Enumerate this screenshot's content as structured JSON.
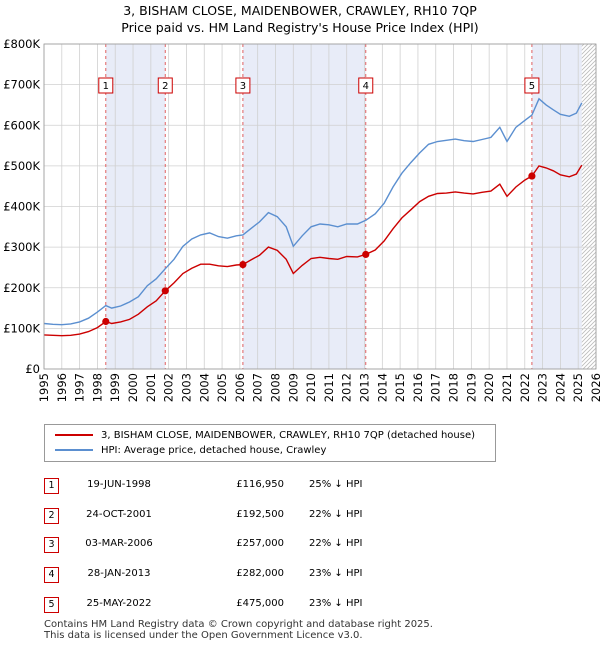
{
  "title_line1": "3, BISHAM CLOSE, MAIDENBOWER, CRAWLEY, RH10 7QP",
  "title_line2": "Price paid vs. HM Land Registry's House Price Index (HPI)",
  "chart_data": {
    "type": "line",
    "title": "3, BISHAM CLOSE, MAIDENBOWER, CRAWLEY, RH10 7QP",
    "subtitle": "Price paid vs. HM Land Registry's House Price Index (HPI)",
    "xlabel": "",
    "ylabel": "",
    "xlim": [
      1995,
      2026
    ],
    "ylim": [
      0,
      800000
    ],
    "x_ticks": [
      "1995",
      "1996",
      "1997",
      "1998",
      "1999",
      "2000",
      "2001",
      "2002",
      "2003",
      "2004",
      "2005",
      "2006",
      "2007",
      "2008",
      "2009",
      "2010",
      "2011",
      "2012",
      "2013",
      "2014",
      "2015",
      "2016",
      "2017",
      "2018",
      "2019",
      "2020",
      "2021",
      "2022",
      "2023",
      "2024",
      "2025",
      "2026"
    ],
    "y_ticks": [
      {
        "value": 0,
        "label": "£0"
      },
      {
        "value": 100000,
        "label": "£100K"
      },
      {
        "value": 200000,
        "label": "£200K"
      },
      {
        "value": 300000,
        "label": "£300K"
      },
      {
        "value": 400000,
        "label": "£400K"
      },
      {
        "value": 500000,
        "label": "£500K"
      },
      {
        "value": 600000,
        "label": "£600K"
      },
      {
        "value": 700000,
        "label": "£700K"
      },
      {
        "value": 800000,
        "label": "£800K"
      }
    ],
    "grid": true,
    "shaded_periods": [
      [
        1998.47,
        2001.81
      ],
      [
        2006.17,
        2013.07
      ],
      [
        2022.4,
        2025.2
      ]
    ],
    "hatched_period": [
      2025.2,
      2026
    ],
    "colors": {
      "property": "#cc0000",
      "hpi": "#5b8fd0",
      "shade": "#e8ecf8",
      "marker_line": "#e06060"
    },
    "series": [
      {
        "name": "3, BISHAM CLOSE, MAIDENBOWER, CRAWLEY, RH10 7QP (detached house)",
        "color": "#cc0000",
        "points": [
          [
            1995.0,
            84000
          ],
          [
            1995.5,
            83000
          ],
          [
            1996.0,
            82000
          ],
          [
            1996.5,
            83000
          ],
          [
            1997.0,
            86000
          ],
          [
            1997.5,
            92000
          ],
          [
            1998.0,
            102000
          ],
          [
            1998.47,
            116950
          ],
          [
            1998.8,
            112000
          ],
          [
            1999.3,
            116000
          ],
          [
            1999.8,
            122000
          ],
          [
            2000.3,
            135000
          ],
          [
            2000.8,
            153000
          ],
          [
            2001.3,
            168000
          ],
          [
            2001.81,
            192500
          ],
          [
            2002.3,
            212000
          ],
          [
            2002.8,
            235000
          ],
          [
            2003.3,
            248000
          ],
          [
            2003.8,
            258000
          ],
          [
            2004.3,
            258000
          ],
          [
            2004.8,
            254000
          ],
          [
            2005.3,
            252000
          ],
          [
            2005.8,
            256000
          ],
          [
            2006.17,
            257000
          ],
          [
            2006.6,
            268000
          ],
          [
            2007.1,
            280000
          ],
          [
            2007.6,
            300000
          ],
          [
            2008.1,
            292000
          ],
          [
            2008.6,
            270000
          ],
          [
            2009.0,
            235000
          ],
          [
            2009.5,
            255000
          ],
          [
            2010.0,
            272000
          ],
          [
            2010.5,
            275000
          ],
          [
            2011.0,
            272000
          ],
          [
            2011.5,
            270000
          ],
          [
            2012.0,
            277000
          ],
          [
            2012.6,
            276000
          ],
          [
            2013.07,
            282000
          ],
          [
            2013.6,
            293000
          ],
          [
            2014.1,
            315000
          ],
          [
            2014.6,
            345000
          ],
          [
            2015.1,
            372000
          ],
          [
            2015.6,
            392000
          ],
          [
            2016.1,
            412000
          ],
          [
            2016.6,
            425000
          ],
          [
            2017.1,
            432000
          ],
          [
            2017.6,
            433000
          ],
          [
            2018.1,
            436000
          ],
          [
            2018.6,
            433000
          ],
          [
            2019.1,
            431000
          ],
          [
            2019.6,
            435000
          ],
          [
            2020.1,
            438000
          ],
          [
            2020.6,
            455000
          ],
          [
            2021.0,
            425000
          ],
          [
            2021.5,
            448000
          ],
          [
            2022.0,
            465000
          ],
          [
            2022.4,
            475000
          ],
          [
            2022.8,
            500000
          ],
          [
            2023.2,
            495000
          ],
          [
            2023.6,
            488000
          ],
          [
            2024.0,
            478000
          ],
          [
            2024.5,
            473000
          ],
          [
            2024.9,
            480000
          ],
          [
            2025.2,
            502000
          ]
        ]
      },
      {
        "name": "HPI: Average price, detached house, Crawley",
        "color": "#5b8fd0",
        "points": [
          [
            1995.0,
            112000
          ],
          [
            1995.5,
            110000
          ],
          [
            1996.0,
            109000
          ],
          [
            1996.5,
            111000
          ],
          [
            1997.0,
            116000
          ],
          [
            1997.5,
            125000
          ],
          [
            1998.0,
            140000
          ],
          [
            1998.47,
            156000
          ],
          [
            1998.8,
            150000
          ],
          [
            1999.3,
            155000
          ],
          [
            1999.8,
            165000
          ],
          [
            2000.3,
            178000
          ],
          [
            2000.8,
            205000
          ],
          [
            2001.3,
            222000
          ],
          [
            2001.81,
            247000
          ],
          [
            2002.3,
            270000
          ],
          [
            2002.8,
            302000
          ],
          [
            2003.3,
            320000
          ],
          [
            2003.8,
            330000
          ],
          [
            2004.3,
            335000
          ],
          [
            2004.8,
            326000
          ],
          [
            2005.3,
            322000
          ],
          [
            2005.8,
            328000
          ],
          [
            2006.17,
            330000
          ],
          [
            2006.6,
            345000
          ],
          [
            2007.1,
            362000
          ],
          [
            2007.6,
            385000
          ],
          [
            2008.1,
            375000
          ],
          [
            2008.6,
            350000
          ],
          [
            2009.0,
            302000
          ],
          [
            2009.5,
            328000
          ],
          [
            2010.0,
            350000
          ],
          [
            2010.5,
            357000
          ],
          [
            2011.0,
            355000
          ],
          [
            2011.5,
            350000
          ],
          [
            2012.0,
            357000
          ],
          [
            2012.6,
            357000
          ],
          [
            2013.07,
            366000
          ],
          [
            2013.6,
            382000
          ],
          [
            2014.1,
            408000
          ],
          [
            2014.6,
            448000
          ],
          [
            2015.1,
            482000
          ],
          [
            2015.6,
            508000
          ],
          [
            2016.1,
            532000
          ],
          [
            2016.6,
            553000
          ],
          [
            2017.1,
            560000
          ],
          [
            2017.6,
            563000
          ],
          [
            2018.1,
            566000
          ],
          [
            2018.6,
            562000
          ],
          [
            2019.1,
            560000
          ],
          [
            2019.6,
            565000
          ],
          [
            2020.1,
            570000
          ],
          [
            2020.6,
            595000
          ],
          [
            2021.0,
            560000
          ],
          [
            2021.5,
            595000
          ],
          [
            2022.0,
            612000
          ],
          [
            2022.4,
            625000
          ],
          [
            2022.8,
            665000
          ],
          [
            2023.2,
            650000
          ],
          [
            2023.6,
            638000
          ],
          [
            2024.0,
            627000
          ],
          [
            2024.5,
            622000
          ],
          [
            2024.9,
            630000
          ],
          [
            2025.2,
            655000
          ]
        ]
      }
    ],
    "sale_markers": [
      {
        "label": "1",
        "x": 1998.47,
        "y": 116950
      },
      {
        "label": "2",
        "x": 2001.81,
        "y": 192500
      },
      {
        "label": "3",
        "x": 2006.17,
        "y": 257000
      },
      {
        "label": "4",
        "x": 2013.07,
        "y": 282000
      },
      {
        "label": "5",
        "x": 2022.4,
        "y": 475000
      }
    ]
  },
  "legend": {
    "property": "3, BISHAM CLOSE, MAIDENBOWER, CRAWLEY, RH10 7QP (detached house)",
    "hpi": "HPI: Average price, detached house, Crawley"
  },
  "sales": [
    {
      "num": "1",
      "date": "19-JUN-1998",
      "price": "£116,950",
      "hpi": "25% ↓ HPI"
    },
    {
      "num": "2",
      "date": "24-OCT-2001",
      "price": "£192,500",
      "hpi": "22% ↓ HPI"
    },
    {
      "num": "3",
      "date": "03-MAR-2006",
      "price": "£257,000",
      "hpi": "22% ↓ HPI"
    },
    {
      "num": "4",
      "date": "28-JAN-2013",
      "price": "£282,000",
      "hpi": "23% ↓ HPI"
    },
    {
      "num": "5",
      "date": "25-MAY-2022",
      "price": "£475,000",
      "hpi": "23% ↓ HPI"
    }
  ],
  "footer_line1": "Contains HM Land Registry data © Crown copyright and database right 2025.",
  "footer_line2": "This data is licensed under the Open Government Licence v3.0."
}
